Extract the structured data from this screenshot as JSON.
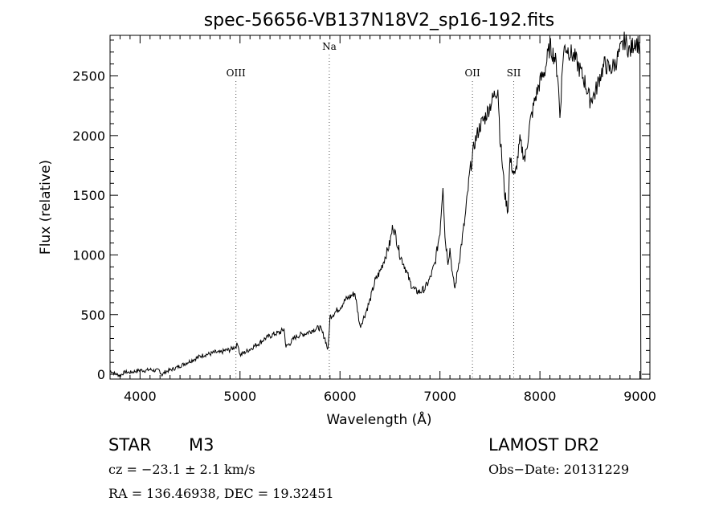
{
  "chart_data": {
    "type": "line",
    "title": "spec-56656-VB137N18V2_sp16-192.fits",
    "xlabel": "Wavelength (Å)",
    "ylabel": "Flux (relative)",
    "xlim": [
      3700,
      9100
    ],
    "ylim": [
      -40,
      2840
    ],
    "xticks": [
      4000,
      5000,
      6000,
      7000,
      8000,
      9000
    ],
    "yticks": [
      0,
      500,
      1000,
      1500,
      2000,
      2500
    ],
    "line_color": "#000000",
    "grid": false,
    "lines": [
      {
        "label": "OIII",
        "x": 4959
      },
      {
        "label": "Na",
        "x": 5893
      },
      {
        "label": "OII",
        "x": 7325
      },
      {
        "label": "SII",
        "x": 7738
      }
    ],
    "series": [
      {
        "x": [
          3700,
          3750,
          3800,
          3850,
          3900,
          3950,
          4000,
          4050,
          4100,
          4150,
          4190,
          4220,
          4250,
          4300,
          4350,
          4400,
          4450,
          4500,
          4550,
          4600,
          4650,
          4700,
          4750,
          4800,
          4850,
          4900,
          4950,
          4980,
          5000,
          5050,
          5100,
          5150,
          5200,
          5250,
          5300,
          5350,
          5400,
          5440,
          5460,
          5500,
          5550,
          5600,
          5650,
          5700,
          5750,
          5800,
          5850,
          5880,
          5900,
          5950,
          6000,
          6050,
          6100,
          6150,
          6200,
          6250,
          6300,
          6350,
          6400,
          6450,
          6500,
          6530,
          6560,
          6600,
          6650,
          6700,
          6750,
          6800,
          6850,
          6900,
          6950,
          7000,
          7030,
          7050,
          7080,
          7100,
          7130,
          7150,
          7200,
          7250,
          7300,
          7350,
          7400,
          7450,
          7500,
          7550,
          7580,
          7600,
          7650,
          7680,
          7700,
          7750,
          7800,
          7850,
          7900,
          7950,
          8000,
          8050,
          8100,
          8150,
          8180,
          8200,
          8230,
          8250,
          8300,
          8350,
          8400,
          8450,
          8500,
          8550,
          8600,
          8650,
          8700,
          8750,
          8800,
          8850,
          8900,
          8950,
          9000,
          9010
        ],
        "y": [
          30,
          5,
          -10,
          20,
          15,
          25,
          35,
          30,
          40,
          30,
          35,
          -5,
          20,
          35,
          50,
          70,
          90,
          110,
          130,
          150,
          165,
          170,
          185,
          180,
          200,
          205,
          230,
          255,
          160,
          185,
          210,
          240,
          265,
          300,
          320,
          340,
          350,
          380,
          230,
          260,
          310,
          330,
          340,
          360,
          380,
          390,
          300,
          200,
          480,
          520,
          560,
          620,
          650,
          680,
          400,
          500,
          620,
          780,
          860,
          980,
          1100,
          1250,
          1150,
          1000,
          900,
          770,
          700,
          690,
          720,
          800,
          930,
          1200,
          1600,
          1150,
          950,
          1050,
          800,
          720,
          1000,
          1300,
          1700,
          1950,
          2080,
          2150,
          2250,
          2350,
          2400,
          2000,
          1500,
          1370,
          1800,
          1650,
          1950,
          1800,
          2100,
          2300,
          2450,
          2550,
          2750,
          2650,
          2500,
          2150,
          2650,
          2750,
          2700,
          2650,
          2550,
          2450,
          2300,
          2350,
          2500,
          2600,
          2550,
          2600,
          2700,
          2800,
          2700,
          2800,
          2750,
          -40
        ]
      }
    ]
  },
  "info": {
    "object_class": "STAR",
    "subclass": "M3",
    "survey": "LAMOST DR2",
    "redshift": "cz = −23.1 ± 2.1 km/s",
    "obs_date": "Obs−Date: 20131229",
    "coords": "RA = 136.46938, DEC =  19.32451"
  }
}
